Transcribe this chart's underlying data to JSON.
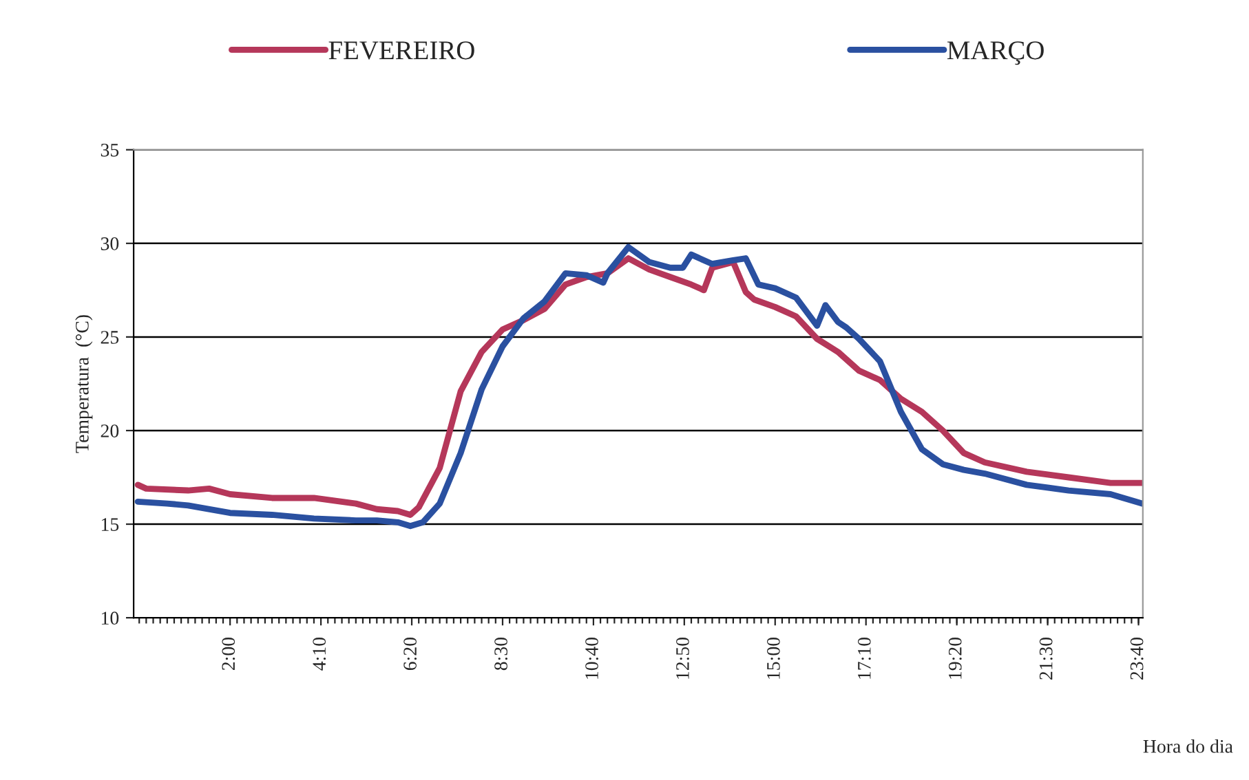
{
  "chart_data": {
    "type": "line",
    "xlabel": "Hora do dia",
    "ylabel": "Temperatura  (°C)",
    "xlim": [
      -0.3,
      23.77
    ],
    "ylim": [
      10,
      35
    ],
    "yticks": [
      10,
      15,
      20,
      25,
      30,
      35
    ],
    "xticks": [
      {
        "value": 2,
        "label": "2:00"
      },
      {
        "value": 4.1667,
        "label": "4:10"
      },
      {
        "value": 6.3333,
        "label": "6:20"
      },
      {
        "value": 8.5,
        "label": "8:30"
      },
      {
        "value": 10.6667,
        "label": "10:40"
      },
      {
        "value": 12.8333,
        "label": "12:50"
      },
      {
        "value": 15,
        "label": "15:00"
      },
      {
        "value": 17.1667,
        "label": "17:10"
      },
      {
        "value": 19.3333,
        "label": "19:20"
      },
      {
        "value": 21.5,
        "label": "21:30"
      },
      {
        "value": 23.6667,
        "label": "23:40"
      }
    ],
    "grid": "y",
    "legend": "top",
    "line_style": "solid",
    "marker": "none",
    "series": [
      {
        "name": "FEVEREIRO",
        "color": "#b5375a",
        "x": [
          -0.2,
          0,
          1,
          1.5,
          2,
          3,
          4,
          5,
          5.5,
          6,
          6.3,
          6.5,
          7,
          7.5,
          8,
          8.5,
          9,
          9.5,
          10,
          10.5,
          11,
          11.5,
          12,
          12.5,
          13,
          13.3,
          13.5,
          14,
          14.3,
          14.5,
          15,
          15.5,
          16,
          16.5,
          17,
          17.5,
          18,
          18.5,
          19,
          19.5,
          20,
          21,
          22,
          23,
          23.75
        ],
        "values": [
          17.1,
          16.9,
          16.8,
          16.9,
          16.6,
          16.4,
          16.4,
          16.1,
          15.8,
          15.7,
          15.5,
          15.9,
          18.0,
          22.1,
          24.2,
          25.4,
          25.9,
          26.5,
          27.8,
          28.2,
          28.4,
          29.2,
          28.6,
          28.2,
          27.8,
          27.5,
          28.7,
          29.0,
          27.4,
          27.0,
          26.6,
          26.1,
          24.9,
          24.2,
          23.2,
          22.7,
          21.7,
          21.0,
          20.0,
          18.8,
          18.3,
          17.8,
          17.5,
          17.2,
          17.2
        ]
      },
      {
        "name": "MARÇO",
        "color": "#2a50a0",
        "x": [
          -0.2,
          0.5,
          1,
          2,
          3,
          4,
          5,
          5.5,
          6,
          6.3,
          6.6,
          7,
          7.5,
          8,
          8.5,
          9,
          9.5,
          10,
          10.5,
          10.9,
          11,
          11.5,
          12,
          12.5,
          12.8,
          13,
          13.5,
          14,
          14.3,
          14.6,
          15,
          15.5,
          16,
          16.2,
          16.5,
          16.7,
          17,
          17.5,
          18,
          18.5,
          19,
          19.5,
          20,
          21,
          22,
          23,
          23.75
        ],
        "values": [
          16.2,
          16.1,
          16.0,
          15.6,
          15.5,
          15.3,
          15.2,
          15.2,
          15.1,
          14.9,
          15.1,
          16.1,
          18.8,
          22.2,
          24.5,
          26.0,
          26.9,
          28.4,
          28.3,
          27.9,
          28.4,
          29.8,
          29.0,
          28.7,
          28.7,
          29.4,
          28.9,
          29.1,
          29.2,
          27.8,
          27.6,
          27.1,
          25.6,
          26.7,
          25.8,
          25.5,
          24.9,
          23.7,
          21.0,
          19.0,
          18.2,
          17.9,
          17.7,
          17.1,
          16.8,
          16.6,
          16.1
        ]
      }
    ]
  }
}
